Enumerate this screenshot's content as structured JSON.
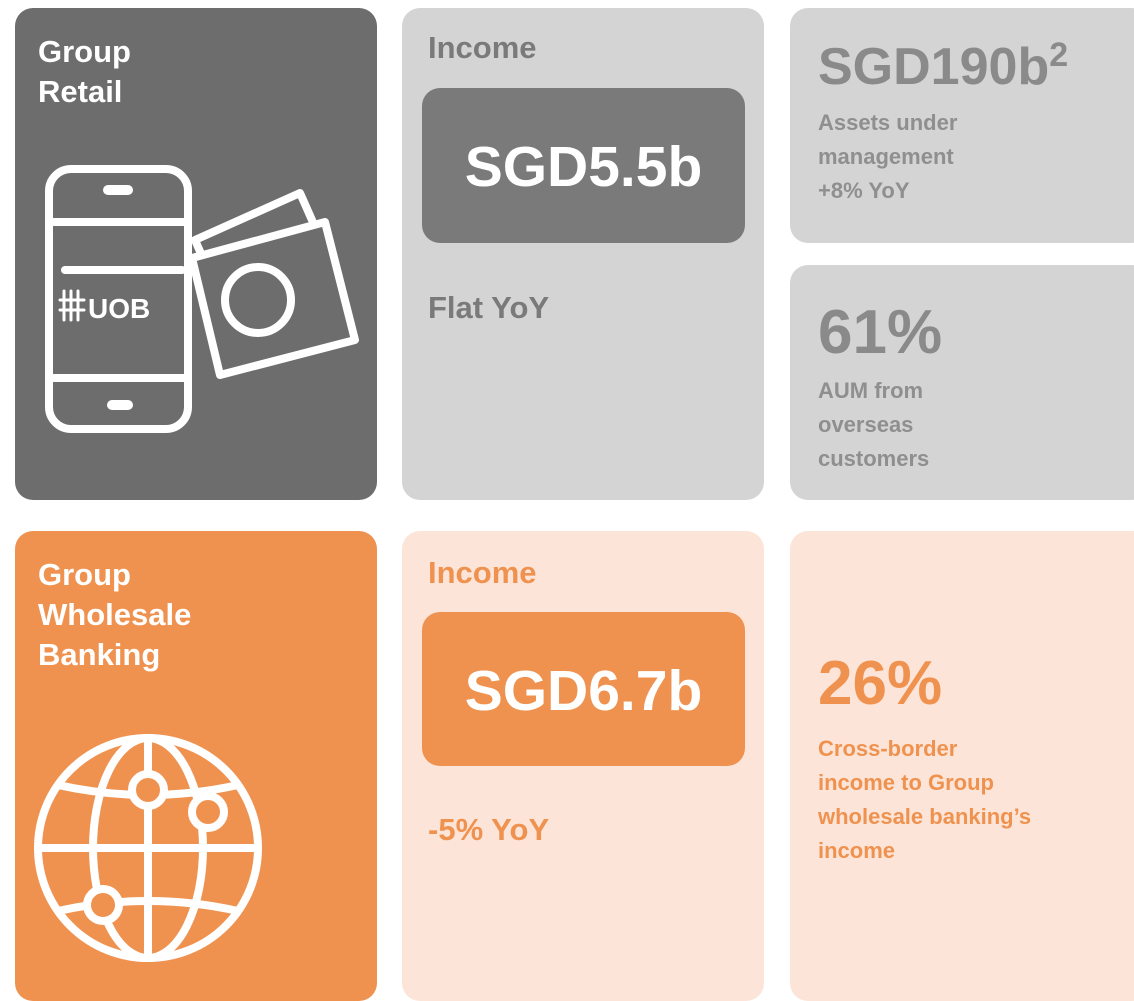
{
  "retail": {
    "title": [
      "Group",
      "Retail"
    ],
    "logo": "UOB",
    "income_label": "Income",
    "income_value": "SGD5.5b",
    "change": "Flat YoY",
    "stats": [
      {
        "value": "SGD190b",
        "footnote": "2",
        "lines": [
          "Assets under",
          "management",
          "+8% YoY"
        ]
      },
      {
        "value": "61%",
        "lines": [
          "AUM from",
          "overseas",
          "customers"
        ]
      }
    ]
  },
  "wholesale": {
    "title": [
      "Group",
      "Wholesale",
      "Banking"
    ],
    "income_label": "Income",
    "income_value": "SGD6.7b",
    "change": "-5% YoY",
    "stats": [
      {
        "value": "26%",
        "lines": [
          "Cross-border",
          "income to Group",
          "wholesale banking’s",
          "income"
        ]
      }
    ]
  }
}
